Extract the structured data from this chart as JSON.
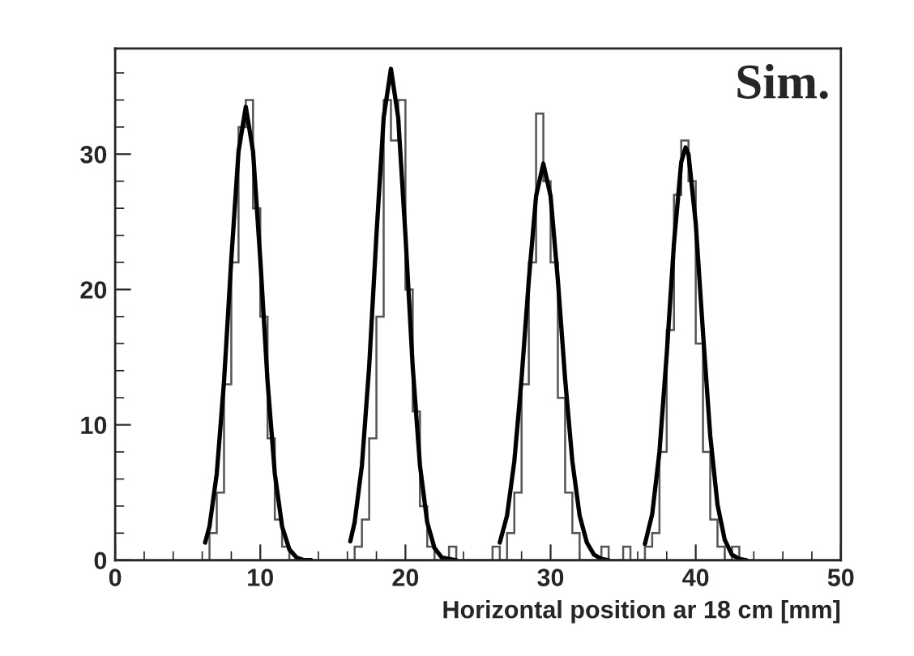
{
  "chart_data": {
    "type": "histogram",
    "xlabel": "Horizontal position ar 18 cm [mm]",
    "annotations": [
      "Sim."
    ],
    "xlim": [
      0,
      50
    ],
    "xticks": [
      0,
      10,
      20,
      30,
      40,
      50
    ],
    "ylim": [
      0,
      37.8
    ],
    "yticks": [
      0,
      10,
      20,
      30
    ],
    "grid": false,
    "legend": false,
    "series": [
      {
        "color": "#555555",
        "bins": [
          6,
          6.5,
          7,
          7.5,
          8,
          8.5,
          9,
          9.5,
          10,
          10.5,
          11,
          11.5,
          12,
          12.5,
          13,
          13.5,
          14,
          14.5,
          15,
          15.5,
          16,
          16.5,
          17,
          17.5,
          18,
          18.5,
          19,
          19.5,
          20,
          20.5,
          21,
          21.5,
          22,
          22.5,
          23,
          23.5,
          24,
          24.5,
          25,
          25.5,
          26,
          26.5,
          27,
          27.5,
          28,
          28.5,
          29,
          29.5,
          30,
          30.5,
          31,
          31.5,
          32,
          32.5,
          33,
          33.5,
          34,
          34.5,
          35,
          35.5,
          36,
          36.5,
          37,
          37.5,
          38,
          38.5,
          39,
          39.5,
          40,
          40.5,
          41,
          41.5,
          42,
          42.5,
          43,
          43.5,
          44
        ],
        "values": [
          0,
          2,
          5,
          13,
          22,
          32,
          34,
          26,
          18,
          9,
          3,
          1,
          0,
          0,
          0,
          0,
          0,
          0,
          0,
          0,
          0,
          1,
          3,
          9,
          18,
          34,
          31,
          34,
          20,
          11,
          4,
          1,
          0,
          0,
          1,
          0,
          0,
          0,
          0,
          0,
          1,
          0,
          2,
          5,
          13,
          22,
          33,
          28,
          22,
          12,
          5,
          2,
          0,
          0,
          0,
          1,
          0,
          0,
          1,
          0,
          0,
          1,
          2,
          8,
          17,
          27,
          31,
          28,
          16,
          8,
          3,
          1,
          0,
          1,
          0,
          0
        ]
      },
      {
        "type": "line",
        "color": "#000000",
        "x": [
          6.2,
          6.5,
          7,
          7.5,
          8,
          8.5,
          9,
          9.5,
          10,
          10.5,
          11,
          11.5,
          12,
          12.5,
          13,
          13.5
        ],
        "values": [
          1.3,
          2.5,
          6.4,
          13.2,
          22.2,
          30.2,
          33.5,
          30.2,
          22.2,
          13.2,
          6.4,
          2.5,
          0.8,
          0.2,
          0.0,
          0
        ]
      },
      {
        "type": "line",
        "color": "#000000",
        "x": [
          16.2,
          16.5,
          17,
          17.5,
          18,
          18.5,
          19,
          19.5,
          20,
          20.5,
          21,
          21.5,
          22,
          22.5,
          23,
          23.5
        ],
        "values": [
          1.4,
          2.8,
          7.0,
          14.3,
          24.0,
          32.7,
          36.3,
          32.7,
          24.0,
          14.3,
          7.0,
          2.8,
          0.9,
          0.2,
          0.1,
          0
        ]
      },
      {
        "type": "line",
        "color": "#000000",
        "x": [
          26.5,
          27,
          27.5,
          28,
          28.5,
          29,
          29.5,
          30,
          30.5,
          31,
          31.5,
          32,
          32.5,
          33,
          33.5,
          34
        ],
        "values": [
          1.3,
          3.3,
          7.3,
          13.4,
          20.7,
          26.9,
          29.3,
          26.9,
          20.7,
          13.4,
          7.3,
          3.3,
          1.3,
          0.4,
          0.1,
          0
        ]
      },
      {
        "type": "line",
        "color": "#000000",
        "x": [
          36.5,
          37,
          37.5,
          38,
          38.5,
          39,
          39.3,
          39.5,
          40,
          40.5,
          41,
          41.5,
          42,
          42.5,
          43,
          43.5
        ],
        "values": [
          1.2,
          3.4,
          8.0,
          15.2,
          23.4,
          29.4,
          30.5,
          30.0,
          24.9,
          16.8,
          9.2,
          4.1,
          1.5,
          0.4,
          0.1,
          0
        ]
      }
    ]
  }
}
